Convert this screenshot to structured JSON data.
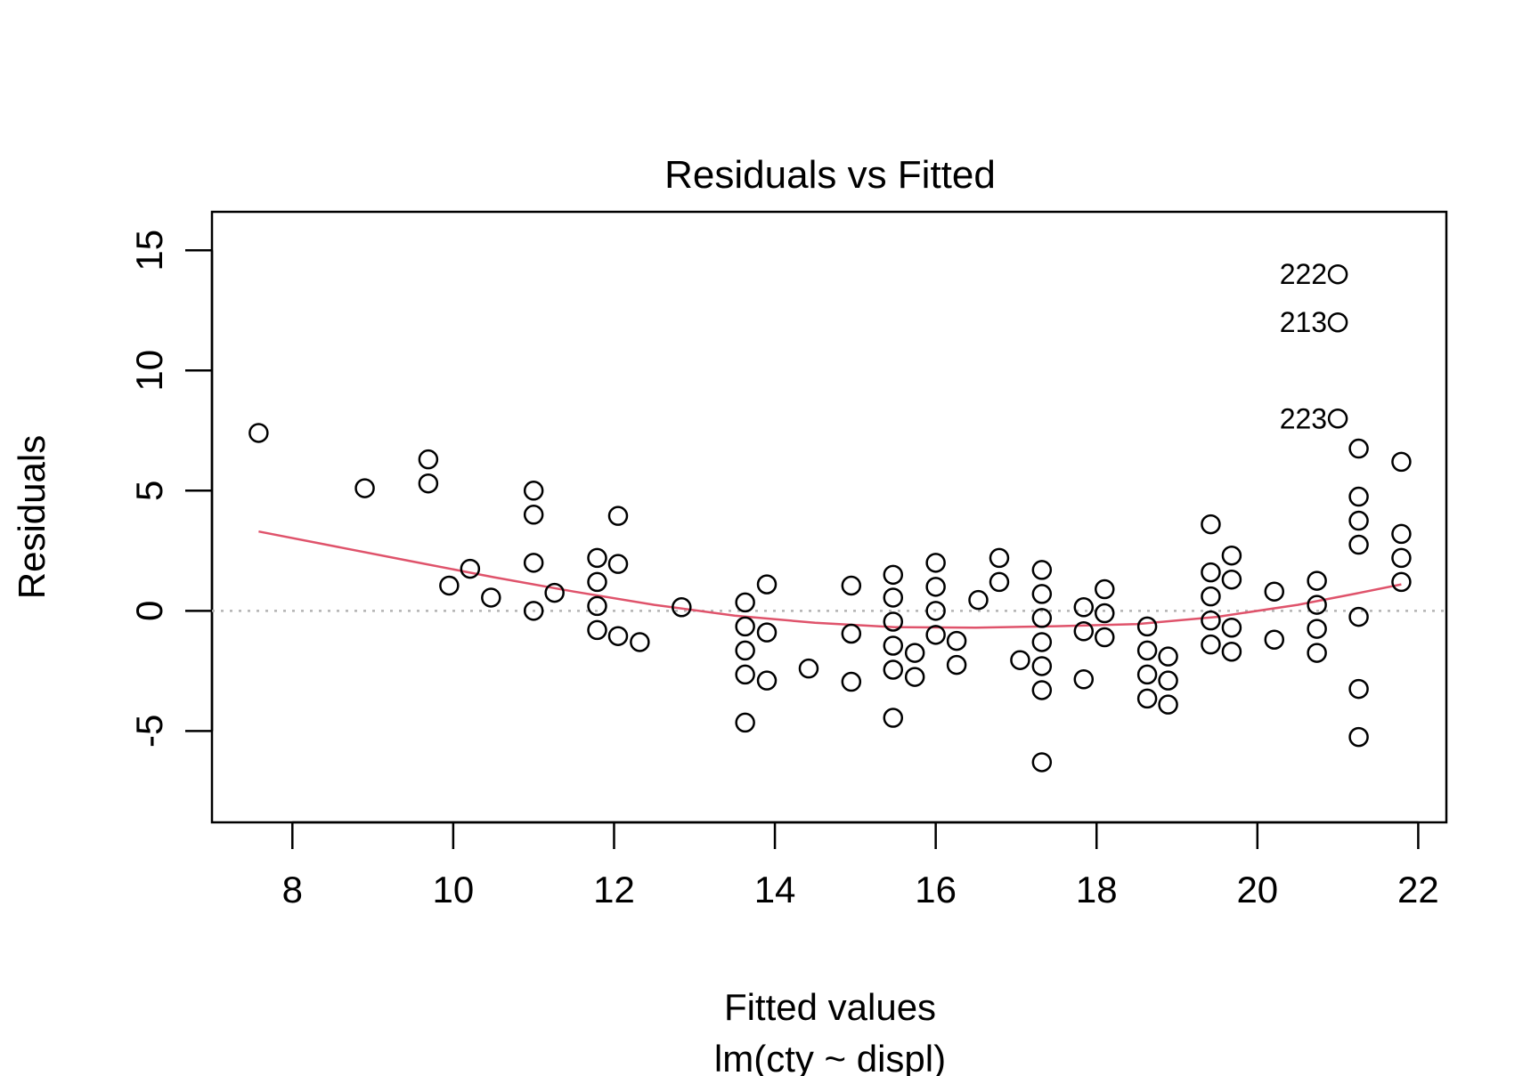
{
  "chart_data": {
    "type": "scatter",
    "title": "Residuals vs Fitted",
    "xlabel": "Fitted values",
    "subtitle": "lm(cty ~ displ)",
    "ylabel": "Residuals",
    "xlim": [
      7,
      22.35
    ],
    "ylim": [
      -8.8,
      16.6
    ],
    "x_ticks": [
      8,
      10,
      12,
      14,
      16,
      18,
      20,
      22
    ],
    "y_ticks": [
      -5,
      0,
      5,
      10,
      15
    ],
    "x_tick_labels": [
      "8",
      "10",
      "12",
      "14",
      "16",
      "18",
      "20",
      "22"
    ],
    "y_tick_labels": [
      "-5",
      "0",
      "5",
      "10",
      "15"
    ],
    "reference_line": {
      "y": 0,
      "style": "dotted",
      "color": "#b3b3b3"
    },
    "point_color": "#000000",
    "smooth_color": "#DF536B",
    "grid": false,
    "points": [
      {
        "x": 7.58,
        "y": 7.4
      },
      {
        "x": 8.9,
        "y": 5.1
      },
      {
        "x": 9.69,
        "y": 6.3
      },
      {
        "x": 9.69,
        "y": 5.3
      },
      {
        "x": 9.95,
        "y": 1.05
      },
      {
        "x": 10.21,
        "y": 1.75
      },
      {
        "x": 10.47,
        "y": 0.55
      },
      {
        "x": 11.0,
        "y": 5.0
      },
      {
        "x": 11.0,
        "y": 4.0
      },
      {
        "x": 11.0,
        "y": 2.0
      },
      {
        "x": 11.0,
        "y": 0.0
      },
      {
        "x": 11.26,
        "y": 0.75
      },
      {
        "x": 11.79,
        "y": 2.2
      },
      {
        "x": 11.79,
        "y": 1.2
      },
      {
        "x": 11.79,
        "y": 0.2
      },
      {
        "x": 11.79,
        "y": -0.8
      },
      {
        "x": 12.05,
        "y": 3.95
      },
      {
        "x": 12.05,
        "y": 1.95
      },
      {
        "x": 12.05,
        "y": -1.05
      },
      {
        "x": 12.32,
        "y": -1.3
      },
      {
        "x": 12.84,
        "y": 0.15
      },
      {
        "x": 13.63,
        "y": 0.35
      },
      {
        "x": 13.63,
        "y": -0.65
      },
      {
        "x": 13.63,
        "y": -1.65
      },
      {
        "x": 13.63,
        "y": -2.65
      },
      {
        "x": 13.63,
        "y": -4.65
      },
      {
        "x": 13.9,
        "y": 1.1
      },
      {
        "x": 13.9,
        "y": -0.9
      },
      {
        "x": 13.9,
        "y": -2.9
      },
      {
        "x": 14.42,
        "y": -2.4
      },
      {
        "x": 14.95,
        "y": 1.05
      },
      {
        "x": 14.95,
        "y": -0.95
      },
      {
        "x": 14.95,
        "y": -2.95
      },
      {
        "x": 15.47,
        "y": 1.5
      },
      {
        "x": 15.47,
        "y": 0.55
      },
      {
        "x": 15.47,
        "y": -0.45
      },
      {
        "x": 15.47,
        "y": -1.45
      },
      {
        "x": 15.47,
        "y": -2.45
      },
      {
        "x": 15.47,
        "y": -4.45
      },
      {
        "x": 15.74,
        "y": -1.75
      },
      {
        "x": 15.74,
        "y": -2.75
      },
      {
        "x": 16.0,
        "y": 2.0
      },
      {
        "x": 16.0,
        "y": 1.0
      },
      {
        "x": 16.0,
        "y": 0.0
      },
      {
        "x": 16.0,
        "y": -1.0
      },
      {
        "x": 16.26,
        "y": -1.25
      },
      {
        "x": 16.26,
        "y": -2.25
      },
      {
        "x": 16.53,
        "y": 0.45
      },
      {
        "x": 16.79,
        "y": 2.2
      },
      {
        "x": 16.79,
        "y": 1.2
      },
      {
        "x": 17.05,
        "y": -2.05
      },
      {
        "x": 17.32,
        "y": 1.7
      },
      {
        "x": 17.32,
        "y": 0.7
      },
      {
        "x": 17.32,
        "y": -0.3
      },
      {
        "x": 17.32,
        "y": -1.3
      },
      {
        "x": 17.32,
        "y": -2.3
      },
      {
        "x": 17.32,
        "y": -3.3
      },
      {
        "x": 17.32,
        "y": -6.3
      },
      {
        "x": 17.84,
        "y": 0.15
      },
      {
        "x": 17.84,
        "y": -0.85
      },
      {
        "x": 17.84,
        "y": -2.85
      },
      {
        "x": 18.1,
        "y": 0.9
      },
      {
        "x": 18.1,
        "y": -0.1
      },
      {
        "x": 18.1,
        "y": -1.1
      },
      {
        "x": 18.63,
        "y": -0.65
      },
      {
        "x": 18.63,
        "y": -1.65
      },
      {
        "x": 18.63,
        "y": -2.65
      },
      {
        "x": 18.63,
        "y": -3.65
      },
      {
        "x": 18.89,
        "y": -1.9
      },
      {
        "x": 18.89,
        "y": -2.9
      },
      {
        "x": 18.89,
        "y": -3.9
      },
      {
        "x": 19.42,
        "y": 3.6
      },
      {
        "x": 19.42,
        "y": 1.6
      },
      {
        "x": 19.42,
        "y": 0.6
      },
      {
        "x": 19.42,
        "y": -0.4
      },
      {
        "x": 19.42,
        "y": -1.4
      },
      {
        "x": 19.68,
        "y": 2.3
      },
      {
        "x": 19.68,
        "y": 1.3
      },
      {
        "x": 19.68,
        "y": -0.7
      },
      {
        "x": 19.68,
        "y": -1.7
      },
      {
        "x": 20.21,
        "y": 0.8
      },
      {
        "x": 20.21,
        "y": -1.2
      },
      {
        "x": 20.74,
        "y": 1.25
      },
      {
        "x": 20.74,
        "y": 0.25
      },
      {
        "x": 20.74,
        "y": -0.75
      },
      {
        "x": 20.74,
        "y": -1.75
      },
      {
        "x": 21.0,
        "y": 14.0,
        "label": "222"
      },
      {
        "x": 21.0,
        "y": 12.0,
        "label": "213"
      },
      {
        "x": 21.0,
        "y": 8.0,
        "label": "223"
      },
      {
        "x": 21.26,
        "y": 6.75
      },
      {
        "x": 21.26,
        "y": 4.75
      },
      {
        "x": 21.26,
        "y": 3.75
      },
      {
        "x": 21.26,
        "y": 2.75
      },
      {
        "x": 21.26,
        "y": -0.25
      },
      {
        "x": 21.26,
        "y": -3.25
      },
      {
        "x": 21.26,
        "y": -5.25
      },
      {
        "x": 21.79,
        "y": 6.2
      },
      {
        "x": 21.79,
        "y": 3.2
      },
      {
        "x": 21.79,
        "y": 2.2
      },
      {
        "x": 21.79,
        "y": 1.2
      }
    ],
    "smooth": [
      {
        "x": 7.58,
        "y": 3.3
      },
      {
        "x": 8.5,
        "y": 2.7
      },
      {
        "x": 9.5,
        "y": 2.05
      },
      {
        "x": 10.5,
        "y": 1.4
      },
      {
        "x": 11.5,
        "y": 0.8
      },
      {
        "x": 12.5,
        "y": 0.25
      },
      {
        "x": 13.5,
        "y": -0.2
      },
      {
        "x": 14.5,
        "y": -0.5
      },
      {
        "x": 15.5,
        "y": -0.68
      },
      {
        "x": 16.5,
        "y": -0.7
      },
      {
        "x": 17.5,
        "y": -0.64
      },
      {
        "x": 18.5,
        "y": -0.55
      },
      {
        "x": 19.5,
        "y": -0.25
      },
      {
        "x": 20.5,
        "y": 0.25
      },
      {
        "x": 21.2,
        "y": 0.7
      },
      {
        "x": 21.79,
        "y": 1.1
      }
    ]
  }
}
